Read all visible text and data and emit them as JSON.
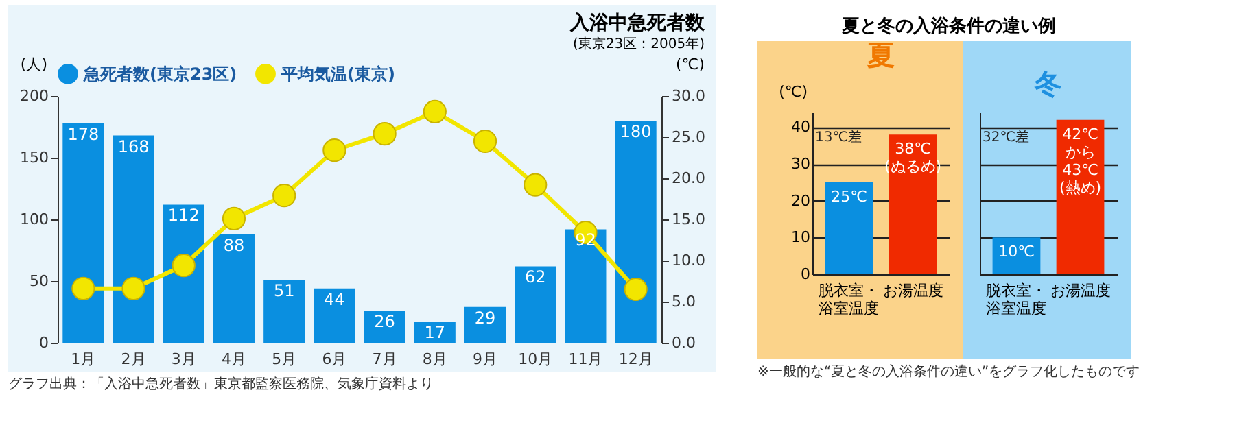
{
  "chart_data": [
    {
      "type": "bar",
      "title": "入浴中急死者数",
      "subtitle": "(東京23区：2005年)",
      "ylabel": "(人)",
      "y2label": "(℃)",
      "categories": [
        "1月",
        "2月",
        "3月",
        "4月",
        "5月",
        "6月",
        "7月",
        "8月",
        "9月",
        "10月",
        "11月",
        "12月"
      ],
      "series": [
        {
          "name": "急死者数(東京23区)",
          "type": "bar",
          "color": "#0a8fe0",
          "values": [
            178,
            168,
            112,
            88,
            51,
            44,
            26,
            17,
            29,
            62,
            92,
            180
          ],
          "value_labels": [
            "178",
            "168",
            "112",
            "88",
            "51",
            "44",
            "26",
            "17",
            "29",
            "62",
            "92",
            "180"
          ]
        },
        {
          "name": "平均気温(東京)",
          "type": "line",
          "axis": "y2",
          "color": "#f2e600",
          "values": [
            6.6,
            6.6,
            9.4,
            15.1,
            17.9,
            23.4,
            25.4,
            28.1,
            24.5,
            19.2,
            13.4,
            6.5
          ]
        }
      ],
      "marker": "circle",
      "legend": "top",
      "ylim": [
        0,
        200
      ],
      "yticks": [
        0,
        50,
        100,
        150,
        200
      ],
      "y2lim": [
        0,
        30
      ],
      "y2ticks": [
        {
          "value": 0,
          "label": "0.0"
        },
        {
          "value": 5,
          "label": "5.0"
        },
        {
          "value": 10,
          "label": "10.0"
        },
        {
          "value": 15,
          "label": "15.0"
        },
        {
          "value": 20,
          "label": "20.0"
        },
        {
          "value": 25,
          "label": "25.0"
        },
        {
          "value": 30,
          "label": "30.0"
        }
      ],
      "annotations": [
        "グラフ出典：「入浴中急死者数」東京都監察医務院、気象庁資料より"
      ]
    },
    {
      "type": "bar",
      "title": "夏と冬の入浴条件の違い例",
      "subtitle": "夏",
      "ylabel": "(℃)",
      "categories": [
        "脱衣室・浴室温度",
        "お湯温度"
      ],
      "values": [
        25,
        38
      ],
      "colors": [
        "#0a8fe0",
        "#f02a00"
      ],
      "value_labels": [
        "25℃",
        "38℃\n(ぬるめ)"
      ],
      "ylim": [
        0,
        44
      ],
      "yticks": [
        0,
        10,
        20,
        30,
        40
      ],
      "grid": "y",
      "annotations": [
        "13℃差"
      ]
    },
    {
      "type": "bar",
      "subtitle": "冬",
      "categories": [
        "脱衣室・浴室温度",
        "お湯温度"
      ],
      "values": [
        10,
        42
      ],
      "colors": [
        "#0a8fe0",
        "#f02a00"
      ],
      "value_labels": [
        "10℃",
        "42℃\nから\n43℃\n(熱め)"
      ],
      "ylim": [
        0,
        44
      ],
      "yticks": [
        0,
        10,
        20,
        30,
        40
      ],
      "grid": "y",
      "tick_labels": "x",
      "annotations": [
        "32℃差",
        "※一般的な“夏と冬の入浴条件の違い”をグラフ化したものです"
      ]
    }
  ]
}
